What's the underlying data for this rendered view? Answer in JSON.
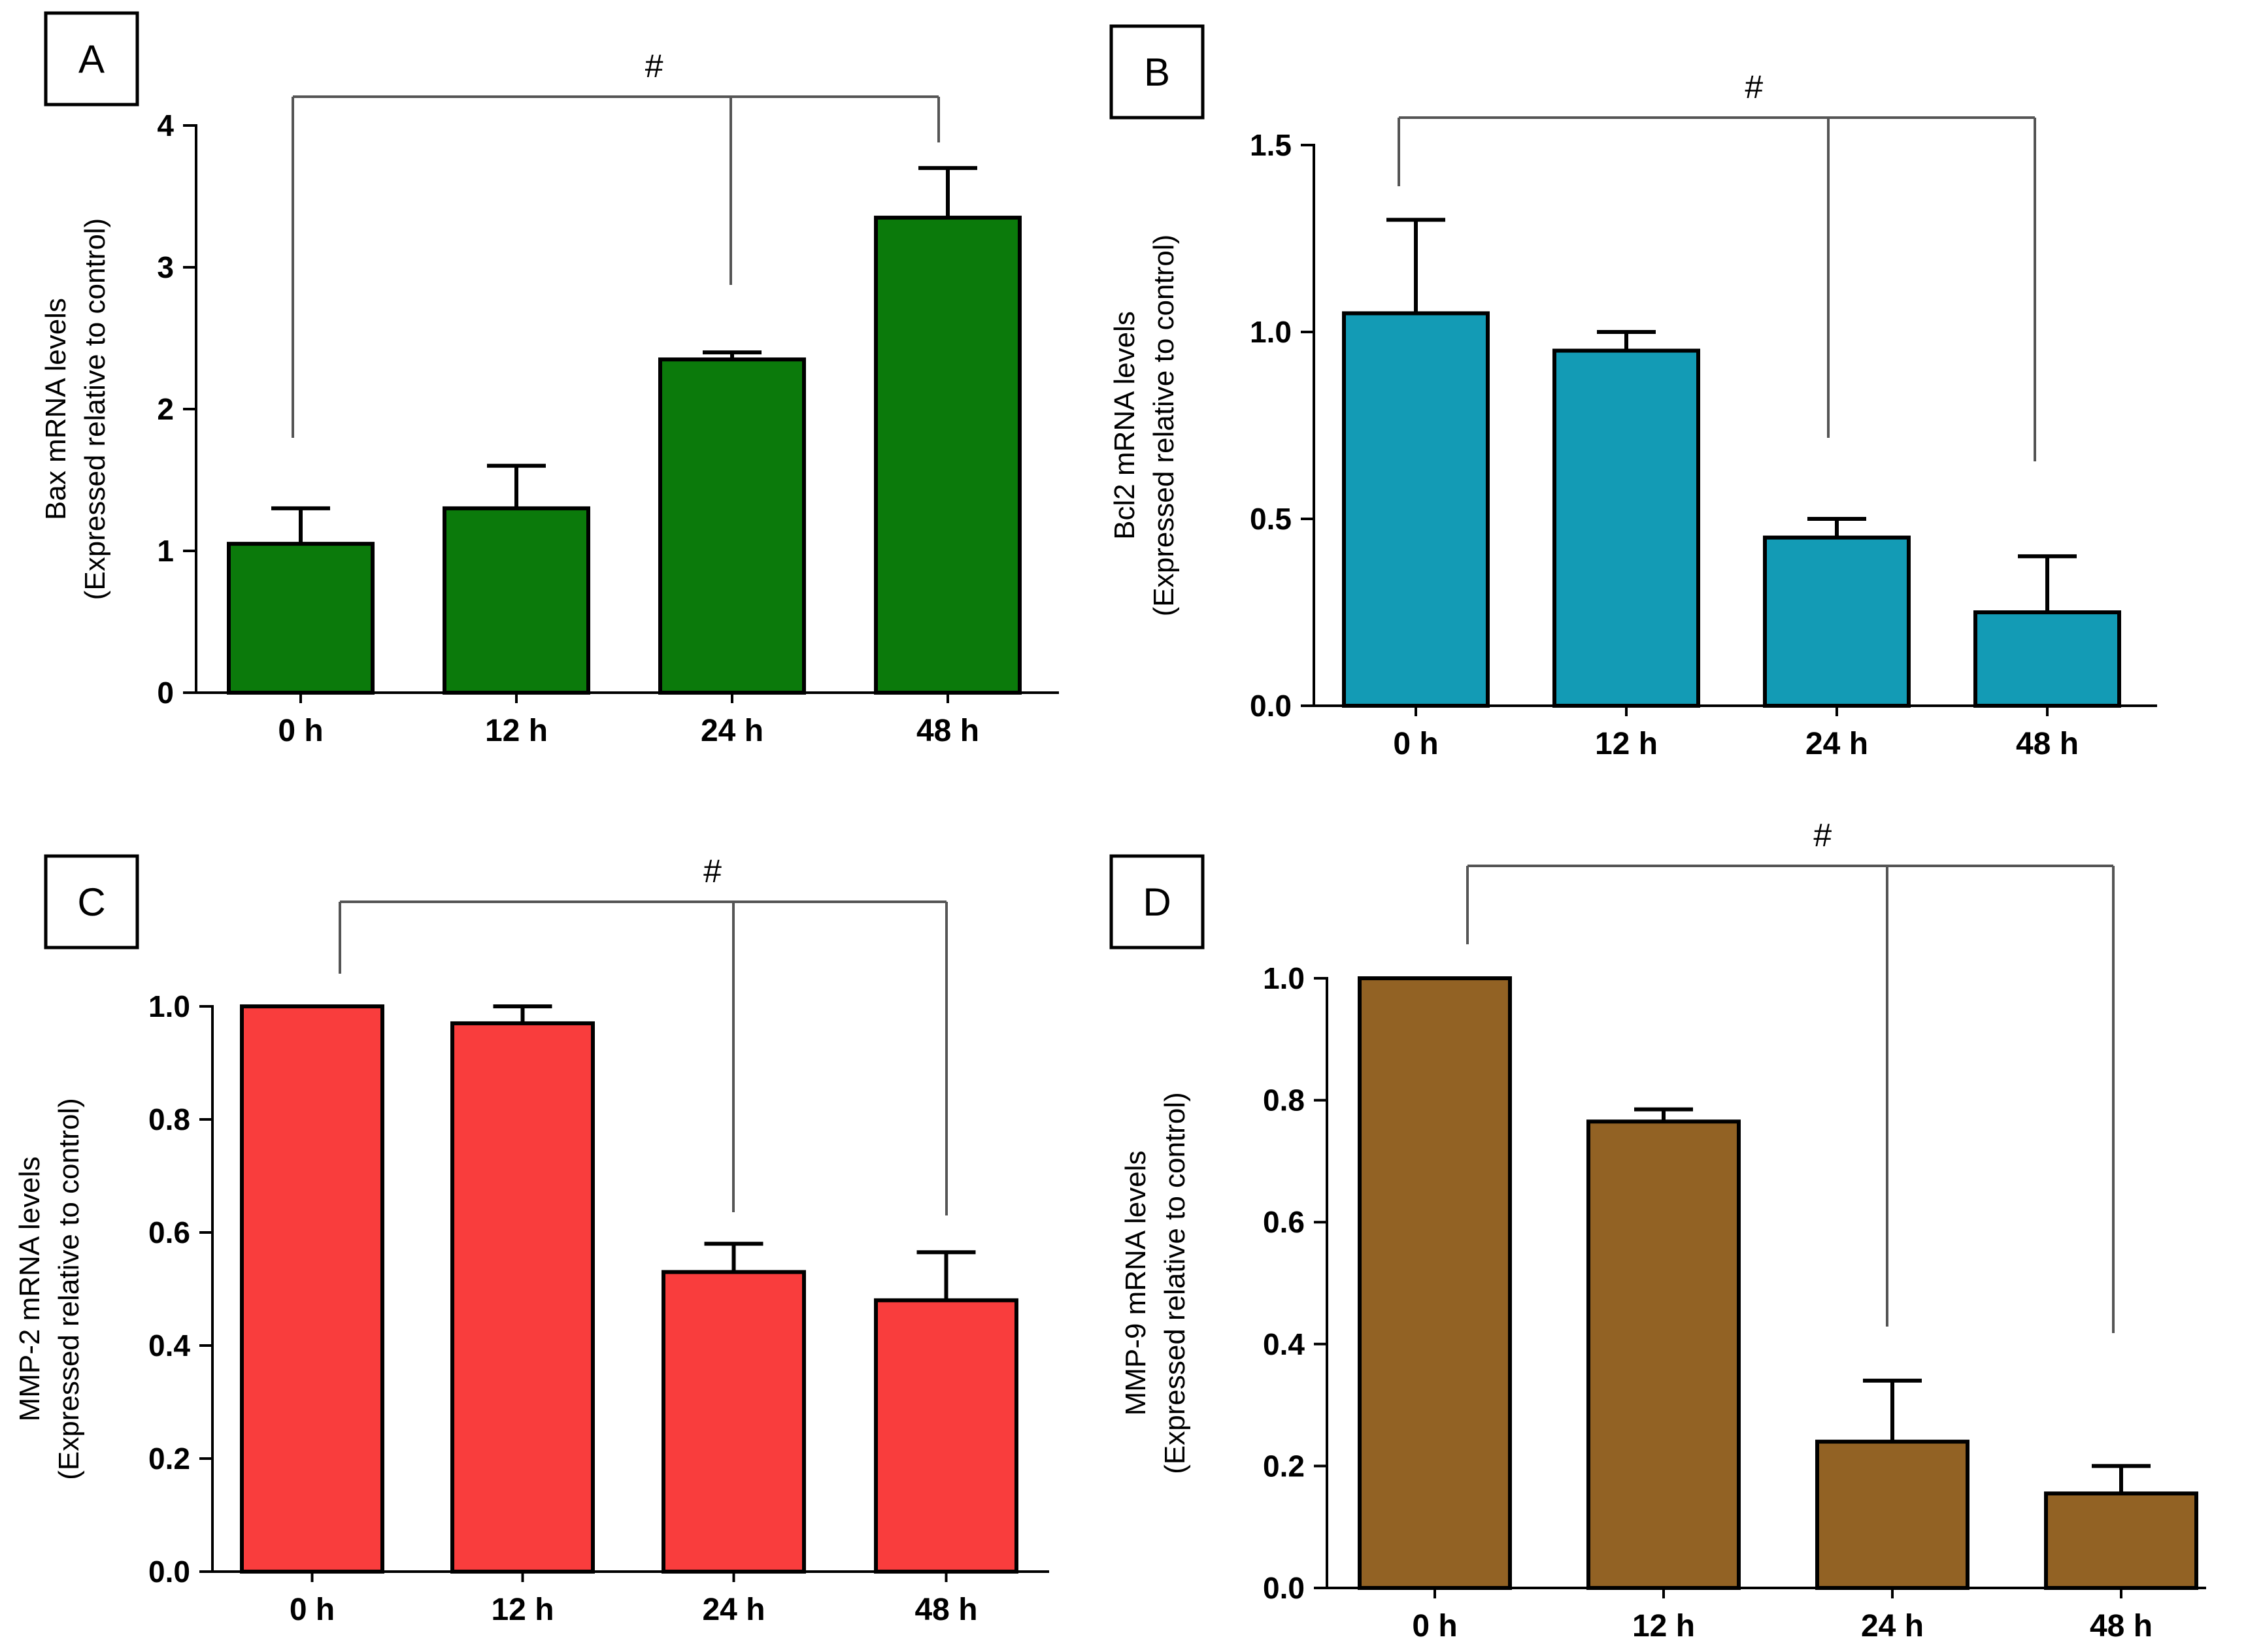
{
  "chart_data": [
    {
      "panel": "A",
      "type": "bar",
      "title": "",
      "categories": [
        "0 h",
        "12 h",
        "24 h",
        "48 h"
      ],
      "values": [
        1.05,
        1.3,
        2.35,
        3.35
      ],
      "errors": [
        0.25,
        0.3,
        0.05,
        0.35
      ],
      "ylabel_lines": [
        "Bax mRNA levels",
        "(Expressed relative to control)"
      ],
      "ylim": [
        0,
        4
      ],
      "yticks": [
        0,
        1,
        2,
        3,
        4
      ],
      "ytick_labels": [
        "0",
        "1",
        "2",
        "3",
        "4"
      ],
      "color": "#0b7a0b",
      "significance": {
        "symbol": "#",
        "from": 0,
        "to": [
          2,
          3
        ]
      }
    },
    {
      "panel": "B",
      "type": "bar",
      "title": "",
      "categories": [
        "0 h",
        "12 h",
        "24 h",
        "48 h"
      ],
      "values": [
        1.05,
        0.95,
        0.45,
        0.25
      ],
      "errors": [
        0.25,
        0.05,
        0.05,
        0.15
      ],
      "ylabel_lines": [
        "Bcl2 mRNA levels",
        "(Expressed relative to control)"
      ],
      "ylim": [
        0,
        1.5
      ],
      "yticks": [
        0,
        0.5,
        1.0,
        1.5
      ],
      "ytick_labels": [
        "0.0",
        "0.5",
        "1.0",
        "1.5"
      ],
      "color": "#139bb5",
      "significance": {
        "symbol": "#",
        "from": 0,
        "to": [
          2,
          3
        ]
      }
    },
    {
      "panel": "C",
      "type": "bar",
      "title": "",
      "categories": [
        "0 h",
        "12 h",
        "24 h",
        "48 h"
      ],
      "values": [
        1.0,
        0.97,
        0.53,
        0.48
      ],
      "errors": [
        0,
        0.03,
        0.05,
        0.085
      ],
      "ylabel_lines": [
        "MMP-2 mRNA levels",
        "(Expressed relative to control)"
      ],
      "ylim": [
        0,
        1.0
      ],
      "yticks": [
        0,
        0.2,
        0.4,
        0.6,
        0.8,
        1.0
      ],
      "ytick_labels": [
        "0.0",
        "0.2",
        "0.4",
        "0.6",
        "0.8",
        "1.0"
      ],
      "color": "#f93d3d",
      "significance": {
        "symbol": "#",
        "from": 0,
        "to": [
          2,
          3
        ]
      }
    },
    {
      "panel": "D",
      "type": "bar",
      "title": "",
      "categories": [
        "0 h",
        "12 h",
        "24 h",
        "48 h"
      ],
      "values": [
        1.0,
        0.765,
        0.24,
        0.155
      ],
      "errors": [
        0,
        0.02,
        0.1,
        0.045
      ],
      "ylabel_lines": [
        "MMP-9 mRNA levels",
        "(Expressed relative to control)"
      ],
      "ylim": [
        0,
        1.0
      ],
      "yticks": [
        0,
        0.2,
        0.4,
        0.6,
        0.8,
        1.0
      ],
      "ytick_labels": [
        "0.0",
        "0.2",
        "0.4",
        "0.6",
        "0.8",
        "1.0"
      ],
      "color": "#926224",
      "significance": {
        "symbol": "#",
        "from": 0,
        "to": [
          2,
          3
        ]
      }
    }
  ]
}
